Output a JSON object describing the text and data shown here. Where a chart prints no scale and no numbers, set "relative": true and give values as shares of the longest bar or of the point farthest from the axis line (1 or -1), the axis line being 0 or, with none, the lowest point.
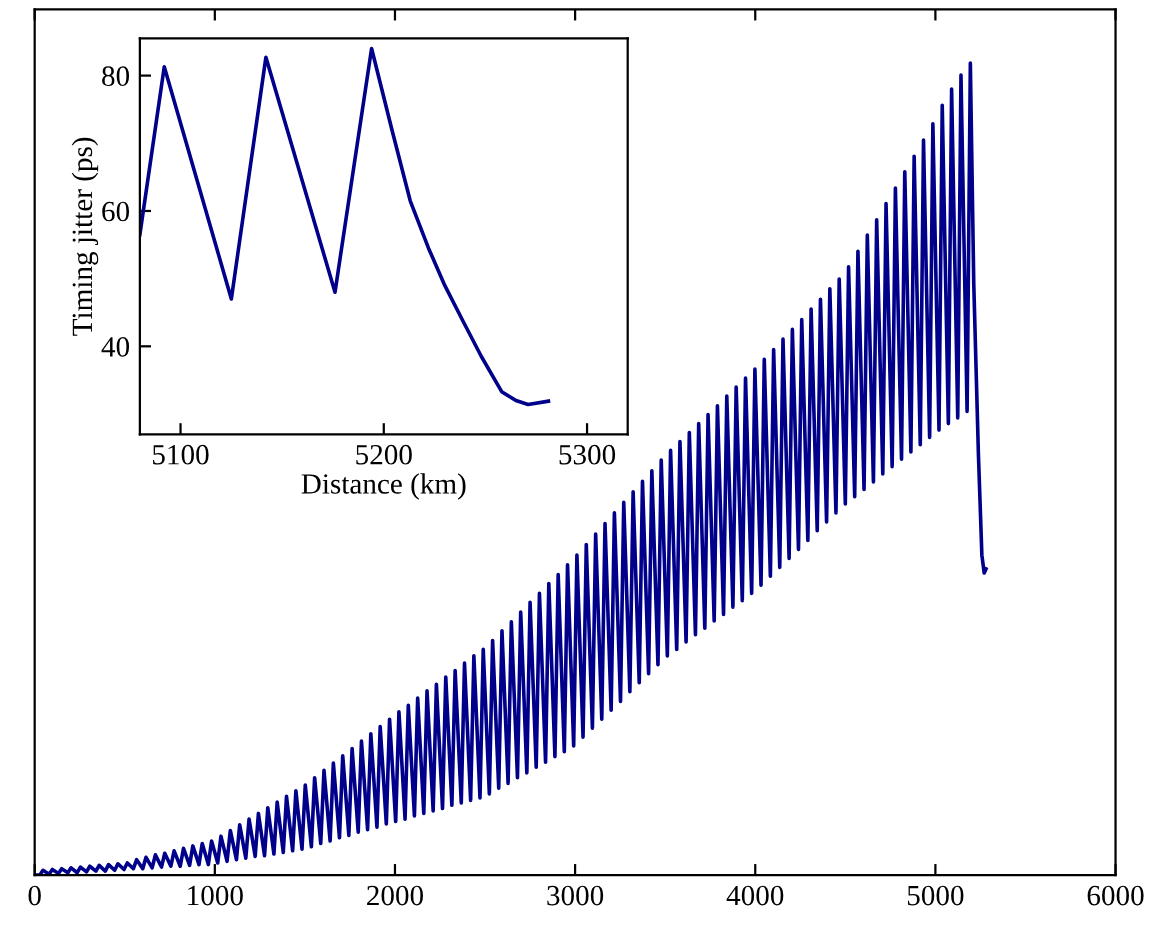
{
  "chart_data": [
    {
      "type": "line",
      "relative": true,
      "xlim": [
        0,
        6000
      ],
      "xticks": [
        0,
        1000,
        2000,
        3000,
        4000,
        5000,
        6000
      ],
      "tick_labels": "x",
      "series": [
        {
          "color": "#00008b",
          "x": [
            0,
            28,
            46,
            80,
            98,
            132,
            150,
            184,
            202,
            236,
            254,
            288,
            306,
            340,
            358,
            392,
            410,
            444,
            462,
            496,
            514,
            548,
            566,
            600,
            618,
            652,
            670,
            704,
            722,
            756,
            774,
            808,
            826,
            860,
            878,
            912,
            930,
            964,
            982,
            1016,
            1034,
            1068,
            1086,
            1120,
            1138,
            1172,
            1190,
            1224,
            1242,
            1276,
            1294,
            1328,
            1346,
            1380,
            1398,
            1432,
            1450,
            1484,
            1502,
            1536,
            1554,
            1588,
            1606,
            1640,
            1658,
            1692,
            1710,
            1744,
            1762,
            1796,
            1814,
            1848,
            1866,
            1900,
            1918,
            1952,
            1970,
            2004,
            2022,
            2056,
            2074,
            2108,
            2126,
            2160,
            2178,
            2212,
            2230,
            2264,
            2282,
            2316,
            2334,
            2368,
            2386,
            2420,
            2438,
            2472,
            2490,
            2524,
            2542,
            2576,
            2594,
            2628,
            2646,
            2680,
            2698,
            2732,
            2750,
            2784,
            2802,
            2836,
            2854,
            2888,
            2906,
            2940,
            2958,
            2992,
            3010,
            3044,
            3062,
            3096,
            3114,
            3148,
            3166,
            3200,
            3218,
            3252,
            3270,
            3304,
            3322,
            3356,
            3374,
            3408,
            3426,
            3460,
            3478,
            3512,
            3530,
            3564,
            3582,
            3616,
            3634,
            3668,
            3686,
            3720,
            3738,
            3772,
            3790,
            3824,
            3842,
            3876,
            3894,
            3928,
            3946,
            3980,
            3998,
            4032,
            4050,
            4084,
            4102,
            4136,
            4154,
            4188,
            4206,
            4240,
            4258,
            4292,
            4310,
            4344,
            4362,
            4396,
            4414,
            4448,
            4466,
            4500,
            4518,
            4552,
            4570,
            4604,
            4622,
            4656,
            4674,
            4708,
            4726,
            4760,
            4778,
            4812,
            4830,
            4864,
            4882,
            4916,
            4934,
            4968,
            4986,
            5020,
            5038,
            5072,
            5090,
            5124,
            5142,
            5176,
            5194,
            5213,
            5239,
            5258,
            5271,
            5281
          ],
          "values": [
            0,
            0.0,
            0.006,
            0.001,
            0.007,
            0.002,
            0.008,
            0.003,
            0.009,
            0.003,
            0.01,
            0.004,
            0.011,
            0.005,
            0.012,
            0.005,
            0.013,
            0.006,
            0.014,
            0.007,
            0.015,
            0.008,
            0.019,
            0.008,
            0.022,
            0.009,
            0.025,
            0.01,
            0.027,
            0.011,
            0.03,
            0.011,
            0.033,
            0.012,
            0.036,
            0.013,
            0.039,
            0.013,
            0.042,
            0.015,
            0.048,
            0.017,
            0.055,
            0.019,
            0.062,
            0.021,
            0.069,
            0.023,
            0.076,
            0.024,
            0.083,
            0.026,
            0.09,
            0.028,
            0.097,
            0.03,
            0.104,
            0.032,
            0.111,
            0.035,
            0.12,
            0.039,
            0.129,
            0.042,
            0.138,
            0.046,
            0.147,
            0.049,
            0.156,
            0.053,
            0.165,
            0.056,
            0.174,
            0.059,
            0.183,
            0.063,
            0.192,
            0.066,
            0.201,
            0.069,
            0.209,
            0.073,
            0.218,
            0.076,
            0.227,
            0.079,
            0.235,
            0.082,
            0.244,
            0.086,
            0.252,
            0.089,
            0.261,
            0.092,
            0.27,
            0.095,
            0.278,
            0.1,
            0.289,
            0.107,
            0.301,
            0.113,
            0.312,
            0.12,
            0.324,
            0.126,
            0.336,
            0.133,
            0.347,
            0.139,
            0.359,
            0.146,
            0.37,
            0.152,
            0.382,
            0.159,
            0.394,
            0.17,
            0.407,
            0.181,
            0.42,
            0.192,
            0.433,
            0.203,
            0.446,
            0.214,
            0.459,
            0.226,
            0.472,
            0.237,
            0.485,
            0.248,
            0.498,
            0.259,
            0.511,
            0.27,
            0.523,
            0.278,
            0.534,
            0.287,
            0.545,
            0.296,
            0.556,
            0.304,
            0.567,
            0.313,
            0.578,
            0.321,
            0.59,
            0.33,
            0.601,
            0.338,
            0.612,
            0.347,
            0.623,
            0.357,
            0.635,
            0.368,
            0.647,
            0.379,
            0.66,
            0.39,
            0.672,
            0.401,
            0.684,
            0.412,
            0.697,
            0.424,
            0.709,
            0.435,
            0.722,
            0.446,
            0.734,
            0.457,
            0.749,
            0.466,
            0.768,
            0.475,
            0.788,
            0.484,
            0.807,
            0.494,
            0.827,
            0.503,
            0.846,
            0.512,
            0.866,
            0.521,
            0.885,
            0.53,
            0.905,
            0.539,
            0.925,
            0.548,
            0.948,
            0.556,
            0.968,
            0.563,
            0.985,
            0.571,
            1.0,
            0.728,
            0.517,
            0.394,
            0.372,
            0.377
          ]
        }
      ]
    },
    {
      "type": "line",
      "xlabel": "Distance (km)",
      "ylabel": "Timing jitter (ps)",
      "xlim": [
        5080,
        5320
      ],
      "ylim": [
        27,
        85.5
      ],
      "xticks": [
        5100,
        5200,
        5300
      ],
      "yticks": [
        40,
        60,
        80
      ],
      "series": [
        {
          "color": "#00008b",
          "x": [
            5080,
            5092,
            5125,
            5142,
            5176,
            5194,
            5204,
            5213,
            5222,
            5230,
            5239,
            5248,
            5258,
            5265,
            5271,
            5281
          ],
          "values": [
            56.5,
            81.3,
            47,
            82.7,
            48,
            84,
            72,
            61.5,
            54.5,
            49,
            43.7,
            38.5,
            33.3,
            32,
            31.4,
            31.9
          ]
        }
      ]
    }
  ]
}
